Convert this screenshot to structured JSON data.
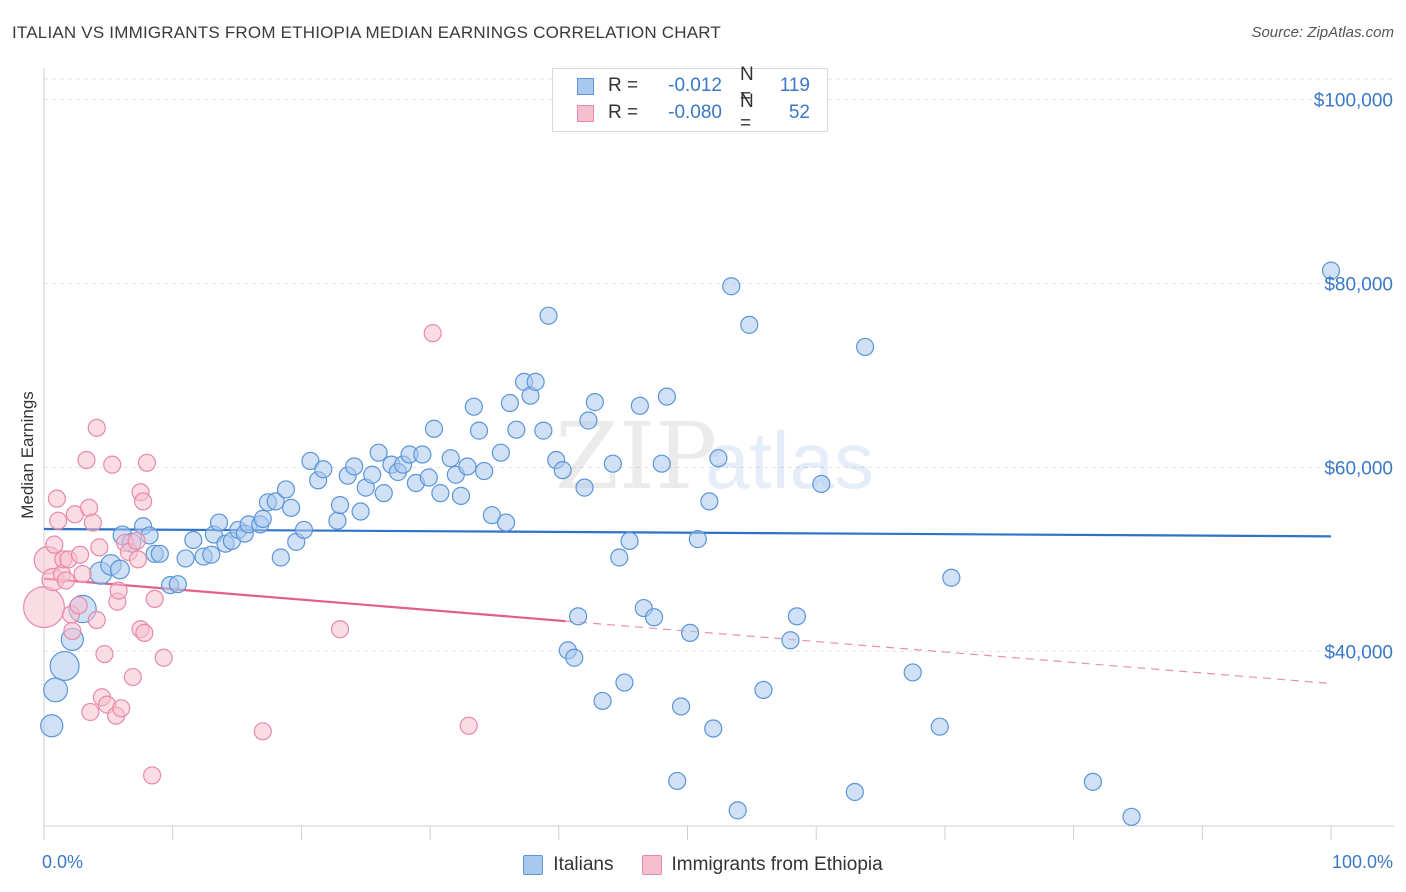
{
  "header": {
    "title": "ITALIAN VS IMMIGRANTS FROM ETHIOPIA MEDIAN EARNINGS CORRELATION CHART",
    "source": "Source: ZipAtlas.com"
  },
  "legend": {
    "rows": [
      {
        "r_label": "R =",
        "r_value": "-0.012",
        "n_label": "N =",
        "n_value": "119"
      },
      {
        "r_label": "R =",
        "r_value": "-0.080",
        "n_label": "N =",
        "n_value": "52"
      }
    ]
  },
  "bottom_legend": {
    "items": [
      {
        "label": "Italians"
      },
      {
        "label": "Immigrants from Ethiopia"
      }
    ]
  },
  "watermark": {
    "zip": "ZIP",
    "atlas": "atlas"
  },
  "colors": {
    "italians_fill": "#a9c8ef",
    "italians_stroke": "#5b95d8",
    "italians_line": "#2f72c8",
    "ethiopia_fill": "#f6bfd0",
    "ethiopia_stroke": "#e88aa8",
    "ethiopia_line": "#e0608a",
    "tick_label": "#3a78c7",
    "grid": "#e2e2e2"
  },
  "chart_data": {
    "type": "scatter",
    "title": "ITALIAN VS IMMIGRANTS FROM ETHIOPIA MEDIAN EARNINGS CORRELATION CHART",
    "xlabel": "",
    "ylabel": "Median Earnings",
    "x_tick_labels": [
      "0.0%",
      "100.0%"
    ],
    "y_ticks": [
      {
        "value": 40000,
        "label": "$40,000"
      },
      {
        "value": 60000,
        "label": "$60,000"
      },
      {
        "value": 80000,
        "label": "$80,000"
      },
      {
        "value": 100000,
        "label": "$100,000"
      }
    ],
    "xlim": [
      0,
      100
    ],
    "ylim": [
      21000,
      103000
    ],
    "grid": true,
    "legend_position": "top-center",
    "series": [
      {
        "name": "Italians",
        "r": -0.012,
        "n": 119,
        "trend": {
          "x0": 0,
          "y0": 53300,
          "x1": 100,
          "y1": 52500,
          "solid_to": 100
        },
        "points": [
          [
            0.6,
            31900,
            1.3
          ],
          [
            0.9,
            35800,
            1.4
          ],
          [
            1.6,
            38400,
            1.7
          ],
          [
            2.2,
            41300,
            1.3
          ],
          [
            3.0,
            44600,
            1.6
          ],
          [
            4.4,
            48500,
            1.3
          ],
          [
            5.2,
            49400,
            1.2
          ],
          [
            5.9,
            48900,
            1.1
          ],
          [
            6.1,
            52600,
            1.1
          ],
          [
            6.8,
            51800,
            1.1
          ],
          [
            7.7,
            53600,
            1.0
          ],
          [
            8.2,
            52600,
            1.0
          ],
          [
            8.6,
            50600,
            1.0
          ],
          [
            9.0,
            50600,
            1.0
          ],
          [
            9.8,
            47200,
            1.0
          ],
          [
            10.4,
            47300,
            1.0
          ],
          [
            11.0,
            50100,
            1.0
          ],
          [
            11.6,
            52100,
            1.0
          ],
          [
            12.4,
            50300,
            1.0
          ],
          [
            13.0,
            50500,
            1.0
          ],
          [
            13.2,
            52700,
            1.0
          ],
          [
            13.6,
            54000,
            1.0
          ],
          [
            14.1,
            51700,
            1.0
          ],
          [
            14.6,
            52000,
            1.0
          ],
          [
            15.1,
            53200,
            1.0
          ],
          [
            15.6,
            52800,
            1.0
          ],
          [
            15.9,
            53800,
            1.0
          ],
          [
            16.8,
            53800,
            1.0
          ],
          [
            17.0,
            54400,
            1.0
          ],
          [
            17.4,
            56200,
            1.0
          ],
          [
            18.0,
            56300,
            1.0
          ],
          [
            18.4,
            50200,
            1.0
          ],
          [
            18.8,
            57600,
            1.0
          ],
          [
            19.2,
            55600,
            1.0
          ],
          [
            19.6,
            51900,
            1.0
          ],
          [
            20.2,
            53200,
            1.0
          ],
          [
            20.7,
            60700,
            1.0
          ],
          [
            21.3,
            58600,
            1.0
          ],
          [
            21.7,
            59800,
            1.0
          ],
          [
            22.8,
            54200,
            1.0
          ],
          [
            23.0,
            55900,
            1.0
          ],
          [
            23.6,
            59100,
            1.0
          ],
          [
            24.1,
            60100,
            1.0
          ],
          [
            24.6,
            55200,
            1.0
          ],
          [
            25.0,
            57800,
            1.0
          ],
          [
            25.5,
            59200,
            1.0
          ],
          [
            26.0,
            61600,
            1.0
          ],
          [
            26.4,
            57200,
            1.0
          ],
          [
            27.0,
            60300,
            1.0
          ],
          [
            27.5,
            59500,
            1.0
          ],
          [
            27.9,
            60300,
            1.0
          ],
          [
            28.4,
            61400,
            1.0
          ],
          [
            28.9,
            58300,
            1.0
          ],
          [
            29.4,
            61400,
            1.0
          ],
          [
            29.9,
            58900,
            1.0
          ],
          [
            30.3,
            64200,
            1.0
          ],
          [
            30.8,
            57200,
            1.0
          ],
          [
            31.6,
            61000,
            1.0
          ],
          [
            32.0,
            59200,
            1.0
          ],
          [
            32.4,
            56900,
            1.0
          ],
          [
            32.9,
            60100,
            1.0
          ],
          [
            33.4,
            66600,
            1.0
          ],
          [
            33.8,
            64000,
            1.0
          ],
          [
            34.2,
            59600,
            1.0
          ],
          [
            34.8,
            54800,
            1.0
          ],
          [
            35.5,
            61600,
            1.0
          ],
          [
            35.9,
            54000,
            1.0
          ],
          [
            36.2,
            67000,
            1.0
          ],
          [
            36.7,
            64100,
            1.0
          ],
          [
            37.3,
            69300,
            1.0
          ],
          [
            37.8,
            67800,
            1.0
          ],
          [
            38.2,
            69300,
            1.0
          ],
          [
            38.8,
            64000,
            1.0
          ],
          [
            39.2,
            76500,
            1.0
          ],
          [
            39.8,
            60800,
            1.0
          ],
          [
            40.3,
            59700,
            1.0
          ],
          [
            40.7,
            40100,
            1.0
          ],
          [
            41.2,
            39300,
            1.0
          ],
          [
            41.5,
            43800,
            1.0
          ],
          [
            42.0,
            57800,
            1.0
          ],
          [
            42.3,
            65100,
            1.0
          ],
          [
            42.8,
            67100,
            1.0
          ],
          [
            43.4,
            34600,
            1.0
          ],
          [
            44.2,
            60400,
            1.0
          ],
          [
            44.7,
            50200,
            1.0
          ],
          [
            45.1,
            36600,
            1.0
          ],
          [
            45.5,
            52000,
            1.0
          ],
          [
            46.3,
            66700,
            1.0
          ],
          [
            46.6,
            44700,
            1.0
          ],
          [
            47.4,
            43700,
            1.0
          ],
          [
            48.0,
            60400,
            1.0
          ],
          [
            48.4,
            67700,
            1.0
          ],
          [
            49.2,
            25900,
            1.0
          ],
          [
            49.5,
            34000,
            1.0
          ],
          [
            50.2,
            42000,
            1.0
          ],
          [
            50.8,
            52200,
            1.0
          ],
          [
            51.7,
            56300,
            1.0
          ],
          [
            52.0,
            31600,
            1.0
          ],
          [
            52.4,
            61000,
            1.0
          ],
          [
            53.4,
            79700,
            1.0
          ],
          [
            53.9,
            22700,
            1.0
          ],
          [
            54.8,
            75500,
            1.0
          ],
          [
            55.9,
            35800,
            1.0
          ],
          [
            58.0,
            41200,
            1.0
          ],
          [
            58.5,
            43800,
            1.0
          ],
          [
            60.4,
            58200,
            1.0
          ],
          [
            63.0,
            24700,
            1.0
          ],
          [
            63.8,
            73100,
            1.0
          ],
          [
            67.5,
            37700,
            1.0
          ],
          [
            69.6,
            31800,
            1.0
          ],
          [
            70.5,
            48000,
            1.0
          ],
          [
            81.5,
            25800,
            1.0
          ],
          [
            84.5,
            22000,
            1.0
          ],
          [
            100.0,
            81400,
            1.0
          ]
        ]
      },
      {
        "name": "Immigrants from Ethiopia",
        "r": -0.08,
        "n": 52,
        "trend": {
          "x0": 0,
          "y0": 47900,
          "x1": 100,
          "y1": 36500,
          "solid_to": 40.5
        },
        "points": [
          [
            0.0,
            44800,
            2.4
          ],
          [
            0.3,
            49900,
            1.6
          ],
          [
            0.7,
            47800,
            1.3
          ],
          [
            0.8,
            51600,
            1.0
          ],
          [
            1.0,
            56600,
            1.0
          ],
          [
            1.1,
            54200,
            1.0
          ],
          [
            1.4,
            48400,
            1.0
          ],
          [
            1.5,
            50000,
            1.0
          ],
          [
            1.7,
            47700,
            1.0
          ],
          [
            1.9,
            50000,
            1.0
          ],
          [
            2.1,
            44000,
            1.0
          ],
          [
            2.2,
            42200,
            1.0
          ],
          [
            2.4,
            54900,
            1.0
          ],
          [
            2.7,
            45000,
            1.0
          ],
          [
            2.8,
            50500,
            1.0
          ],
          [
            3.0,
            48400,
            1.0
          ],
          [
            3.3,
            60800,
            1.0
          ],
          [
            3.5,
            55600,
            1.0
          ],
          [
            3.6,
            33400,
            1.0
          ],
          [
            3.8,
            54000,
            1.0
          ],
          [
            4.1,
            43400,
            1.0
          ],
          [
            4.1,
            64300,
            1.0
          ],
          [
            4.3,
            51300,
            1.0
          ],
          [
            4.5,
            35000,
            1.0
          ],
          [
            4.7,
            39700,
            1.0
          ],
          [
            4.9,
            34200,
            1.0
          ],
          [
            5.3,
            60300,
            1.0
          ],
          [
            5.6,
            33000,
            1.0
          ],
          [
            5.7,
            45400,
            1.0
          ],
          [
            5.8,
            46600,
            1.0
          ],
          [
            6.0,
            33800,
            1.0
          ],
          [
            6.3,
            51800,
            1.0
          ],
          [
            6.6,
            50800,
            1.0
          ],
          [
            6.9,
            37200,
            1.0
          ],
          [
            7.2,
            52000,
            1.0
          ],
          [
            7.3,
            50000,
            1.0
          ],
          [
            7.5,
            57300,
            1.0
          ],
          [
            7.5,
            42400,
            1.0
          ],
          [
            7.7,
            56300,
            1.0
          ],
          [
            7.8,
            42000,
            1.0
          ],
          [
            8.0,
            60500,
            1.0
          ],
          [
            8.4,
            26500,
            1.0
          ],
          [
            8.6,
            45700,
            1.0
          ],
          [
            9.3,
            39300,
            1.0
          ],
          [
            17.0,
            31300,
            1.0
          ],
          [
            23.0,
            42400,
            1.0
          ],
          [
            30.2,
            74600,
            1.0
          ],
          [
            33.0,
            31900,
            1.0
          ]
        ]
      }
    ]
  }
}
